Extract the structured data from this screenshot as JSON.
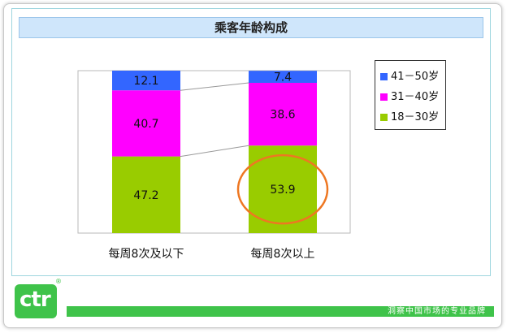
{
  "chart_data": {
    "type": "bar",
    "stacked": true,
    "title": "乘客年龄构成",
    "categories": [
      "每周8次及以下",
      "每周8次以上"
    ],
    "series": [
      {
        "name": "18－30岁",
        "values": [
          47.2,
          53.9
        ],
        "color": "#99cc00"
      },
      {
        "name": "31－40岁",
        "values": [
          40.7,
          38.6
        ],
        "color": "#ff00ff"
      },
      {
        "name": "41－50岁",
        "values": [
          12.1,
          7.4
        ],
        "color": "#3366ff"
      }
    ],
    "ylim": [
      0,
      100
    ],
    "grid": false,
    "legend_position": "right",
    "highlighted_value": 53.9,
    "highlight_color": "#ee7722"
  },
  "legend": [
    {
      "label": "41－50岁",
      "color": "#3366ff"
    },
    {
      "label": "31－40岁",
      "color": "#ff00ff"
    },
    {
      "label": "18－30岁",
      "color": "#99cc00"
    }
  ],
  "brand": {
    "logo_text": "ctr",
    "logo_mark": "®",
    "slogan": "洞察中国市场的专业品牌",
    "color": "#3fc34a"
  }
}
